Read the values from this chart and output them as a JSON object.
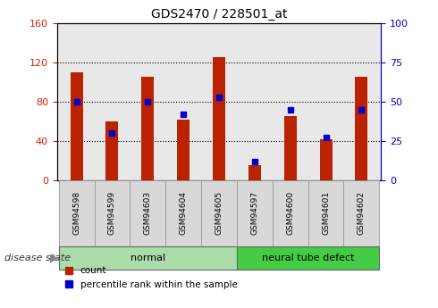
{
  "title": "GDS2470 / 228501_at",
  "samples": [
    "GSM94598",
    "GSM94599",
    "GSM94603",
    "GSM94604",
    "GSM94605",
    "GSM94597",
    "GSM94600",
    "GSM94601",
    "GSM94602"
  ],
  "counts": [
    110,
    60,
    105,
    62,
    125,
    15,
    65,
    42,
    105
  ],
  "percentiles": [
    50,
    30,
    50,
    42,
    53,
    12,
    45,
    27,
    45
  ],
  "groups": [
    {
      "label": "normal",
      "start": 0,
      "end": 5
    },
    {
      "label": "neural tube defect",
      "start": 5,
      "end": 9
    }
  ],
  "bar_color": "#bb2200",
  "percentile_color": "#0000cc",
  "left_ylim": [
    0,
    160
  ],
  "right_ylim": [
    0,
    100
  ],
  "left_yticks": [
    0,
    40,
    80,
    120,
    160
  ],
  "right_yticks": [
    0,
    25,
    50,
    75,
    100
  ],
  "grid_values": [
    40,
    80,
    120
  ],
  "background_color": "#ffffff",
  "plot_bg_color": "#e8e8e8",
  "tick_box_color": "#d8d8d8",
  "tick_box_border": "#999999",
  "group_normal_color": "#aaddaa",
  "group_defect_color": "#44cc44",
  "group_border_color": "#666666",
  "left_tick_color": "#cc2200",
  "right_tick_color": "#0000cc",
  "disease_state_label": "disease state",
  "legend_count_label": "count",
  "legend_percentile_label": "percentile rank within the sample",
  "bar_width": 0.35,
  "percentile_marker_size": 5,
  "xlim": [
    -0.55,
    8.55
  ]
}
